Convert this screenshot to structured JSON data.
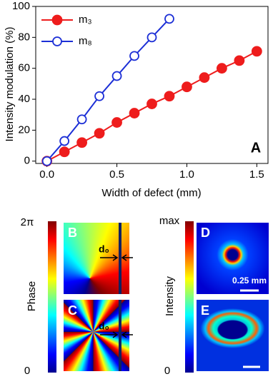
{
  "chart_data": {
    "type": "line",
    "x_label": "Width of defect (mm)",
    "y_label": "Intensity modulation (%)",
    "panel_label": "A",
    "xlim": [
      -0.08,
      1.58
    ],
    "ylim": [
      -1.5,
      100
    ],
    "xticks": [
      {
        "value": 0,
        "label": "0.0"
      },
      {
        "value": 0.5,
        "label": "0.5"
      },
      {
        "value": 1,
        "label": "1.0"
      },
      {
        "value": 1.5,
        "label": "1.5"
      }
    ],
    "yticks": [
      0,
      20,
      40,
      60,
      80,
      100
    ],
    "legend": "upper left",
    "series": [
      {
        "name": "m₃",
        "color": "#ee1c1c",
        "filled": true,
        "x": [
          0,
          0.125,
          0.25,
          0.375,
          0.5,
          0.625,
          0.75,
          0.875,
          1,
          1.125,
          1.25,
          1.375,
          1.5
        ],
        "values": [
          0,
          6,
          12,
          18,
          25,
          31,
          37,
          42,
          48,
          54,
          60,
          65,
          71
        ]
      },
      {
        "name": "m₈",
        "color": "#1c2fd6",
        "filled": false,
        "x": [
          0,
          0.125,
          0.25,
          0.375,
          0.5,
          0.625,
          0.75,
          0.875
        ],
        "values": [
          0,
          13,
          27,
          42,
          55,
          68,
          80,
          92
        ]
      }
    ]
  },
  "panels": {
    "phase_bar": {
      "top": "2π",
      "bottom": "0",
      "label": "Phase"
    },
    "intensity_bar": {
      "top": "max",
      "bottom": "0",
      "label": "Intensity"
    },
    "B": {
      "letter": "B",
      "annotation": "d₀"
    },
    "C": {
      "letter": "C",
      "annotation": "d₀"
    },
    "D": {
      "letter": "D",
      "scale": "0.25 mm"
    },
    "E": {
      "letter": "E"
    }
  }
}
